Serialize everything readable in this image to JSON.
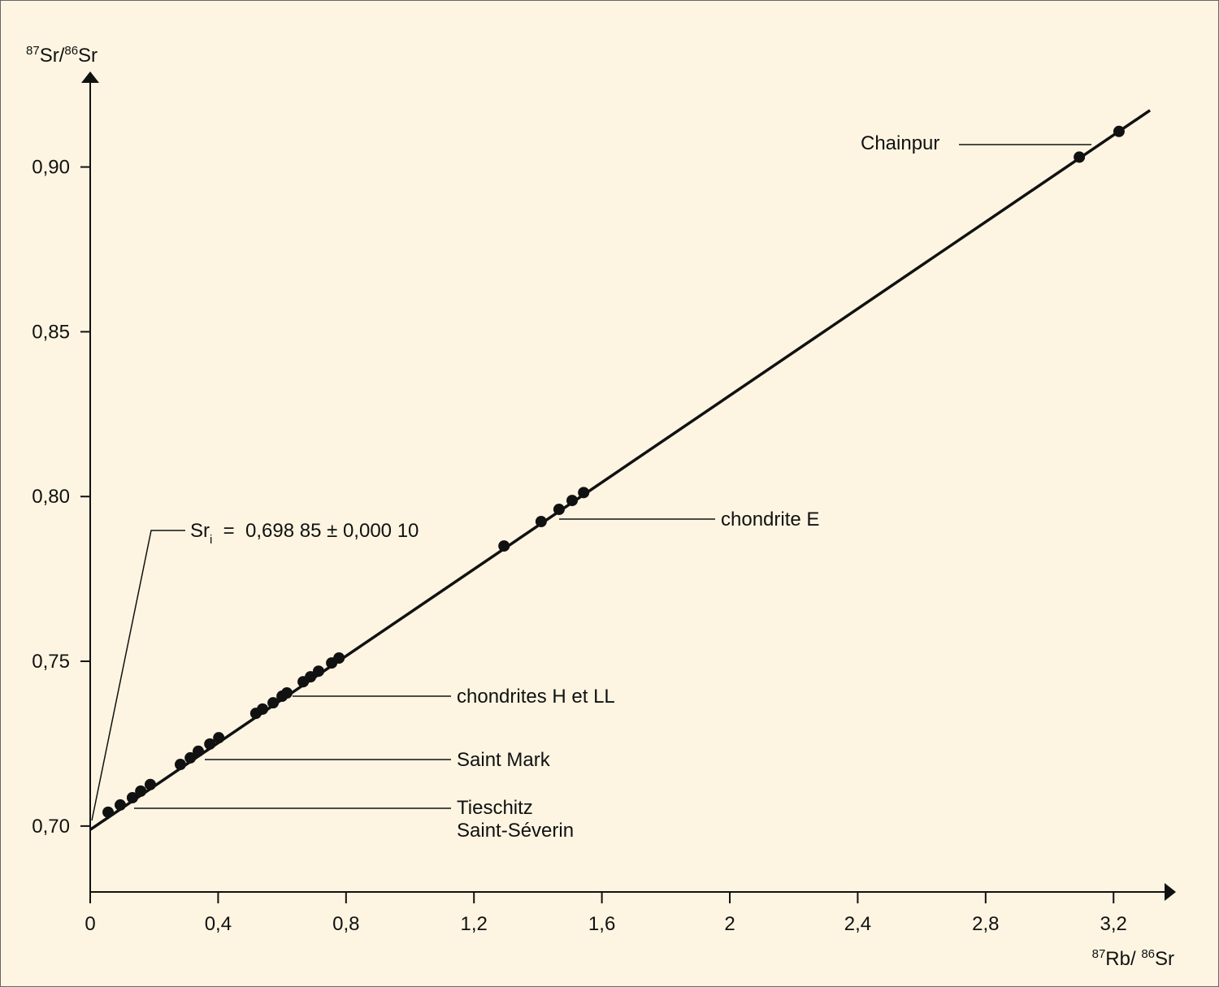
{
  "chart_data": {
    "type": "scatter",
    "y_label": {
      "sup1": "87",
      "text1": "Sr/",
      "sup2": "86",
      "text2": "Sr"
    },
    "x_label": {
      "sup1": "87",
      "text1": "Rb/ ",
      "sup2": "86",
      "text2": "Sr"
    },
    "color": "#111111",
    "x": [
      0.056,
      0.094,
      0.132,
      0.158,
      0.188,
      0.282,
      0.313,
      0.338,
      0.374,
      0.402,
      0.518,
      0.539,
      0.572,
      0.6,
      0.615,
      0.666,
      0.689,
      0.714,
      0.755,
      0.778,
      1.294,
      1.41,
      1.466,
      1.507,
      1.543,
      3.093,
      3.217
    ],
    "values": [
      0.7042,
      0.7064,
      0.7086,
      0.7106,
      0.7126,
      0.7187,
      0.7207,
      0.7227,
      0.7249,
      0.7268,
      0.7342,
      0.7355,
      0.7374,
      0.7394,
      0.7404,
      0.7438,
      0.7453,
      0.747,
      0.7495,
      0.751,
      0.785,
      0.7924,
      0.7961,
      0.7988,
      0.8012,
      0.903,
      0.9108
    ],
    "fit_line": {
      "x": [
        0,
        3.314
      ],
      "y": [
        0.6989,
        0.9172
      ]
    },
    "xlim": [
      0,
      3.39
    ],
    "ylim": [
      0.68,
      0.928
    ],
    "xticks": [
      0,
      {
        "value": 0.4,
        "label": "0,4"
      },
      {
        "value": 0.8,
        "label": "0,8"
      },
      {
        "value": 1.2,
        "label": "1,2"
      },
      {
        "value": 1.6,
        "label": "1,6"
      },
      2,
      {
        "value": 2.4,
        "label": "2,4"
      },
      {
        "value": 2.8,
        "label": "2,8"
      },
      {
        "value": 3.2,
        "label": "3,2"
      }
    ],
    "yticks": [
      {
        "value": 0.7,
        "label": "0,70"
      },
      {
        "value": 0.75,
        "label": "0,75"
      },
      {
        "value": 0.8,
        "label": "0,80"
      },
      {
        "value": 0.85,
        "label": "0,85"
      },
      {
        "value": 0.9,
        "label": "0,90"
      }
    ],
    "annotations": {
      "sri": {
        "main": "Sr",
        "sub": "i",
        "rest": "  =  0,698 85 ± 0,000 10"
      },
      "chainpur": "Chainpur",
      "chondrite_e": "chondrite E",
      "chondrites_h_ll": "chondrites H et LL",
      "saint_mark": "Saint Mark",
      "tieschitz": "Tieschitz",
      "saint_severin": "Saint-Séverin"
    }
  }
}
